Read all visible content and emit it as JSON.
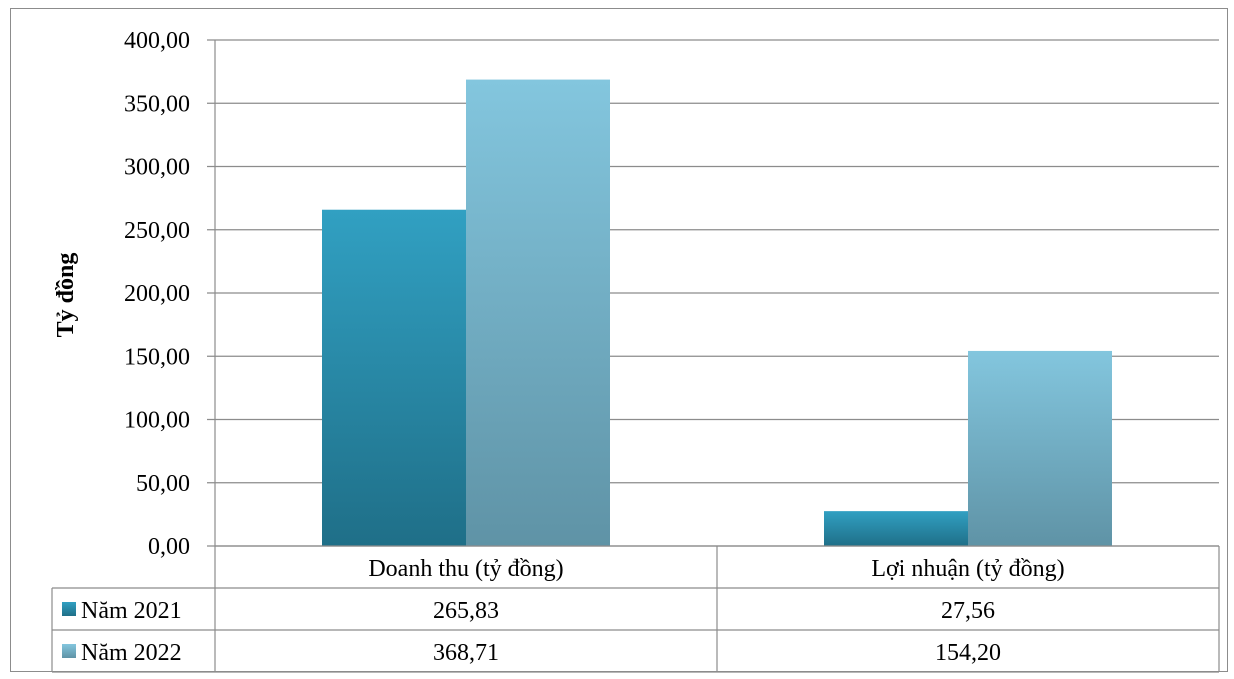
{
  "chart_data": {
    "type": "bar",
    "ylabel": "Tỷ đồng",
    "ylim": [
      0,
      400
    ],
    "ytick_step": 50,
    "ytick_labels": [
      "0,00",
      "50,00",
      "100,00",
      "150,00",
      "200,00",
      "250,00",
      "300,00",
      "350,00",
      "400,00"
    ],
    "categories": [
      "Doanh thu (tỷ đồng)",
      "Lợi nhuận (tỷ đồng)"
    ],
    "grid": true,
    "data_table": true,
    "series": [
      {
        "name": "Năm 2021",
        "values": [
          265.83,
          27.56
        ],
        "display_values": [
          "265,83",
          "27,56"
        ],
        "color_top": "#31a0c2",
        "color_bottom": "#1f6f88"
      },
      {
        "name": "Năm 2022",
        "values": [
          368.71,
          154.2
        ],
        "display_values": [
          "368,71",
          "154,20"
        ],
        "color_top": "#83c6de",
        "color_bottom": "#5f93a6"
      }
    ]
  }
}
